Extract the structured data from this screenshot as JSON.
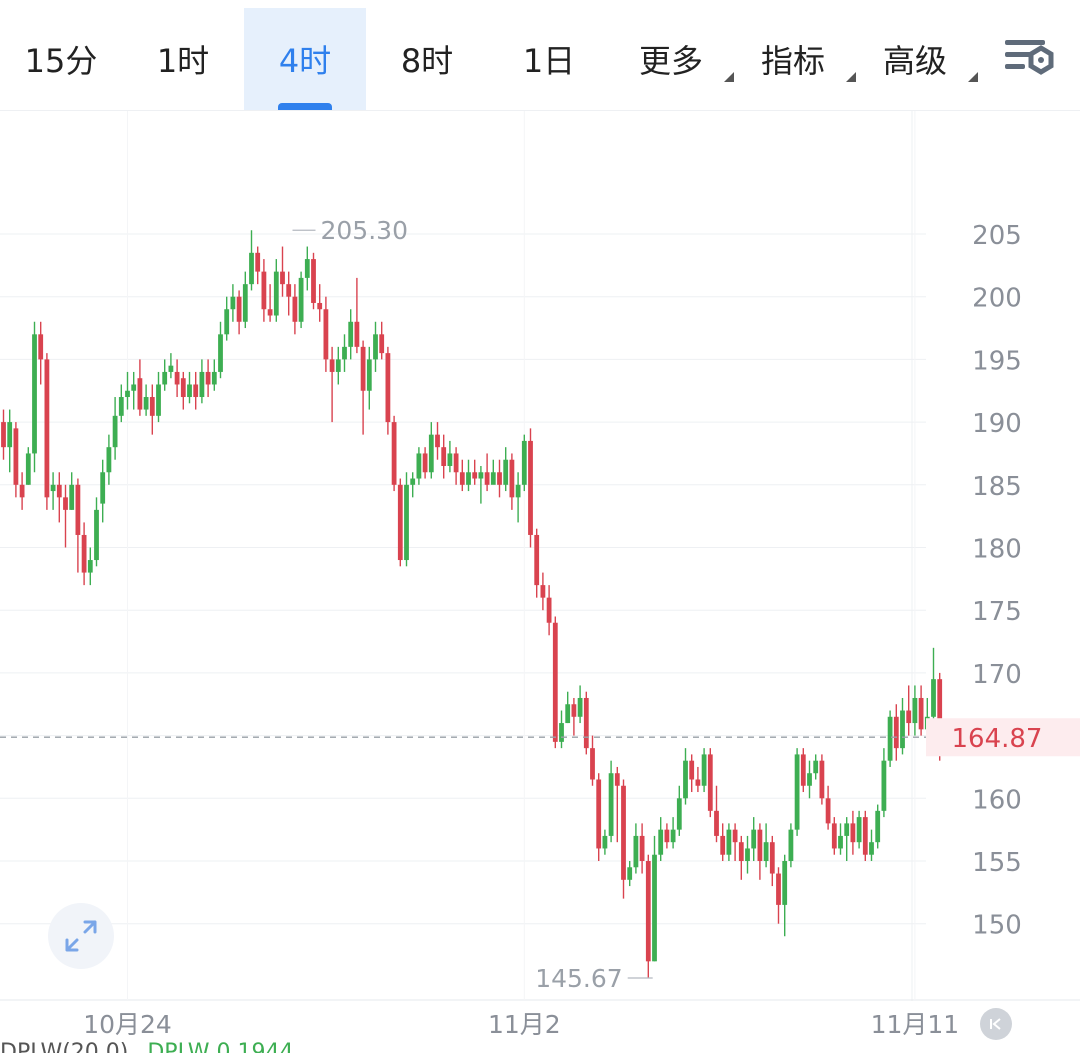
{
  "tabs": [
    {
      "label": "15分"
    },
    {
      "label": "1时"
    },
    {
      "label": "4时",
      "active": true
    },
    {
      "label": "8时"
    },
    {
      "label": "1日"
    },
    {
      "label": "更多",
      "dropdown": true
    },
    {
      "label": "指标",
      "dropdown": true
    },
    {
      "label": "高级",
      "dropdown": true
    }
  ],
  "icons": {
    "settings": "chart-settings-icon",
    "expand": "expand-arrows-icon",
    "rewind": "jump-to-start-icon"
  },
  "colors": {
    "up": "#3dae52",
    "down": "#d9434f",
    "active_tab": "#2f80ed",
    "price_tag": "#d9434f"
  },
  "indicator_strip": {
    "name": "DPLW(20,0)",
    "value": "DPLW 0.1944"
  },
  "chart_data": {
    "type": "candlestick",
    "interval": "4时",
    "y_ticks": [
      150,
      155,
      160,
      165,
      170,
      175,
      180,
      185,
      190,
      195,
      200,
      205
    ],
    "y_tick_labels": [
      "150",
      "155",
      "160",
      "",
      "170",
      "175",
      "180",
      "185",
      "190",
      "195",
      "200",
      "205"
    ],
    "ylim": [
      143.9,
      214.1
    ],
    "x_tick_labels": [
      {
        "label": "10月24",
        "bar": 20
      },
      {
        "label": "11月2",
        "bar": 84
      },
      {
        "label": "11月11",
        "bar": 147
      }
    ],
    "grid": true,
    "last_price": 164.87,
    "last_price_label": "164.87",
    "high_annotation": {
      "value": 205.3,
      "label": "205.30",
      "bar": 45
    },
    "low_annotation": {
      "value": 145.67,
      "label": "145.67",
      "bar": 106
    },
    "candles": [
      [
        190.0,
        188.0,
        191.0,
        187.0
      ],
      [
        188.0,
        190.0,
        191.0,
        186.0
      ],
      [
        189.5,
        185.0,
        190.0,
        184.0
      ],
      [
        185.0,
        184.0,
        186.0,
        183.0
      ],
      [
        185.0,
        187.5,
        188.0,
        185.0
      ],
      [
        187.5,
        197.0,
        198.0,
        186.0
      ],
      [
        197.0,
        195.0,
        198.0,
        193.0
      ],
      [
        195.0,
        184.0,
        195.5,
        183.0
      ],
      [
        184.5,
        185.0,
        186.0,
        183.0
      ],
      [
        185.0,
        184.0,
        186.0,
        182.0
      ],
      [
        184.0,
        183.0,
        185.0,
        180.0
      ],
      [
        183.0,
        185.0,
        186.0,
        183.0
      ],
      [
        185.0,
        181.0,
        185.5,
        178.0
      ],
      [
        181.0,
        178.0,
        182.0,
        177.0
      ],
      [
        178.0,
        179.0,
        180.0,
        177.0
      ],
      [
        179.0,
        183.0,
        184.0,
        178.5
      ],
      [
        183.5,
        186.0,
        187.0,
        182.0
      ],
      [
        186.0,
        188.0,
        189.0,
        185.0
      ],
      [
        188.0,
        190.5,
        192.0,
        187.0
      ],
      [
        190.5,
        192.0,
        193.0,
        190.0
      ],
      [
        192.0,
        192.5,
        194.0,
        191.0
      ],
      [
        192.5,
        193.0,
        194.0,
        191.0
      ],
      [
        193.5,
        191.0,
        195.0,
        190.5
      ],
      [
        191.0,
        192.0,
        193.0,
        190.5
      ],
      [
        192.0,
        190.5,
        193.0,
        189.0
      ],
      [
        190.5,
        193.0,
        194.0,
        190.0
      ],
      [
        193.0,
        194.0,
        195.0,
        192.5
      ],
      [
        194.0,
        194.5,
        195.5,
        193.5
      ],
      [
        194.0,
        193.0,
        195.0,
        192.0
      ],
      [
        193.5,
        192.0,
        194.0,
        191.0
      ],
      [
        192.0,
        193.0,
        194.0,
        191.5
      ],
      [
        193.0,
        192.0,
        194.0,
        191.0
      ],
      [
        192.0,
        194.0,
        195.0,
        191.5
      ],
      [
        194.0,
        193.0,
        195.0,
        192.0
      ],
      [
        193.0,
        194.0,
        195.0,
        192.5
      ],
      [
        194.0,
        197.0,
        198.0,
        193.5
      ],
      [
        197.0,
        199.0,
        200.0,
        196.5
      ],
      [
        199.0,
        200.0,
        201.0,
        198.0
      ],
      [
        200.0,
        198.0,
        200.5,
        197.0
      ],
      [
        198.0,
        201.0,
        202.0,
        197.5
      ],
      [
        201.0,
        203.5,
        205.3,
        200.5
      ],
      [
        203.5,
        202.0,
        204.0,
        201.0
      ],
      [
        202.0,
        199.0,
        203.0,
        198.0
      ],
      [
        199.0,
        198.5,
        201.0,
        198.0
      ],
      [
        198.5,
        202.0,
        203.0,
        198.0
      ],
      [
        202.0,
        201.0,
        204.0,
        200.0
      ],
      [
        201.0,
        200.0,
        202.0,
        198.5
      ],
      [
        200.0,
        198.0,
        201.0,
        197.0
      ],
      [
        198.0,
        201.5,
        202.0,
        197.5
      ],
      [
        201.5,
        203.0,
        204.0,
        200.5
      ],
      [
        203.0,
        199.5,
        203.5,
        199.0
      ],
      [
        199.5,
        199.0,
        201.0,
        198.0
      ],
      [
        199.0,
        195.0,
        200.0,
        194.0
      ],
      [
        195.0,
        194.0,
        196.0,
        190.0
      ],
      [
        194.0,
        195.0,
        196.0,
        193.0
      ],
      [
        195.0,
        196.0,
        197.0,
        194.0
      ],
      [
        196.0,
        198.0,
        199.0,
        195.0
      ],
      [
        198.0,
        196.0,
        201.5,
        195.5
      ],
      [
        196.0,
        192.5,
        196.5,
        189.0
      ],
      [
        192.5,
        195.0,
        196.0,
        191.0
      ],
      [
        195.0,
        197.0,
        198.0,
        194.0
      ],
      [
        197.0,
        195.5,
        198.0,
        195.0
      ],
      [
        195.5,
        190.0,
        196.0,
        189.0
      ],
      [
        190.0,
        185.0,
        190.5,
        184.5
      ],
      [
        185.0,
        179.0,
        185.5,
        178.5
      ],
      [
        179.0,
        185.0,
        186.0,
        178.5
      ],
      [
        185.0,
        185.5,
        186.0,
        184.0
      ],
      [
        185.5,
        187.5,
        188.0,
        185.0
      ],
      [
        187.5,
        186.0,
        188.0,
        185.5
      ],
      [
        186.0,
        189.0,
        190.0,
        185.5
      ],
      [
        189.0,
        188.0,
        190.0,
        187.0
      ],
      [
        188.0,
        186.5,
        189.0,
        185.5
      ],
      [
        186.5,
        187.5,
        188.5,
        186.0
      ],
      [
        187.5,
        186.0,
        188.0,
        185.0
      ],
      [
        186.0,
        185.0,
        187.0,
        184.5
      ],
      [
        185.0,
        186.0,
        187.0,
        184.5
      ],
      [
        186.0,
        185.5,
        187.0,
        185.0
      ],
      [
        185.5,
        186.0,
        186.5,
        183.5
      ],
      [
        186.0,
        185.0,
        187.5,
        184.5
      ],
      [
        185.0,
        186.0,
        187.0,
        185.5
      ],
      [
        186.0,
        185.0,
        187.0,
        184.0
      ],
      [
        185.0,
        187.0,
        188.0,
        184.5
      ],
      [
        187.0,
        184.0,
        187.5,
        183.0
      ],
      [
        184.0,
        185.0,
        186.0,
        182.0
      ],
      [
        185.0,
        188.5,
        189.0,
        184.5
      ],
      [
        188.5,
        181.0,
        189.5,
        180.0
      ],
      [
        181.0,
        177.0,
        181.5,
        176.0
      ],
      [
        177.0,
        176.0,
        178.0,
        175.0
      ],
      [
        176.0,
        174.0,
        177.0,
        173.0
      ],
      [
        174.0,
        164.5,
        174.5,
        164.0
      ],
      [
        164.5,
        166.0,
        167.0,
        164.0
      ],
      [
        166.0,
        167.5,
        168.5,
        166.0
      ],
      [
        167.5,
        166.5,
        168.0,
        165.0
      ],
      [
        166.5,
        168.0,
        169.0,
        166.0
      ],
      [
        168.0,
        164.0,
        168.5,
        163.5
      ],
      [
        164.0,
        161.5,
        165.0,
        161.0
      ],
      [
        161.5,
        156.0,
        162.0,
        155.0
      ],
      [
        156.0,
        157.0,
        157.5,
        155.5
      ],
      [
        157.0,
        162.0,
        163.0,
        156.5
      ],
      [
        162.0,
        161.0,
        162.5,
        156.5
      ],
      [
        161.0,
        153.5,
        161.5,
        152.0
      ],
      [
        153.5,
        154.5,
        155.0,
        153.0
      ],
      [
        154.5,
        157.0,
        158.0,
        154.0
      ],
      [
        157.0,
        155.0,
        158.0,
        154.0
      ],
      [
        155.0,
        147.0,
        155.5,
        145.67
      ],
      [
        147.0,
        155.5,
        157.0,
        147.0
      ],
      [
        155.5,
        157.5,
        158.5,
        155.0
      ],
      [
        157.5,
        156.5,
        158.0,
        156.0
      ],
      [
        156.5,
        157.5,
        158.5,
        156.0
      ],
      [
        157.5,
        160.0,
        161.0,
        157.0
      ],
      [
        160.0,
        163.0,
        164.0,
        159.5
      ],
      [
        163.0,
        161.5,
        163.5,
        160.5
      ],
      [
        161.5,
        161.0,
        162.5,
        160.5
      ],
      [
        161.0,
        163.5,
        164.0,
        160.5
      ],
      [
        163.5,
        159.0,
        164.0,
        158.5
      ],
      [
        159.0,
        157.0,
        161.0,
        156.5
      ],
      [
        157.0,
        155.5,
        158.0,
        155.0
      ],
      [
        155.5,
        157.5,
        158.0,
        155.0
      ],
      [
        157.5,
        156.5,
        158.0,
        155.0
      ],
      [
        156.5,
        155.0,
        157.0,
        153.5
      ],
      [
        155.0,
        156.0,
        157.0,
        154.0
      ],
      [
        156.0,
        157.5,
        158.5,
        155.0
      ],
      [
        157.5,
        155.0,
        158.0,
        153.5
      ],
      [
        155.0,
        156.5,
        158.0,
        154.5
      ],
      [
        156.5,
        154.0,
        157.0,
        153.0
      ],
      [
        154.0,
        151.5,
        154.5,
        150.0
      ],
      [
        151.5,
        155.0,
        155.5,
        149.0
      ],
      [
        155.0,
        157.5,
        158.0,
        154.5
      ],
      [
        157.5,
        163.5,
        164.0,
        157.0
      ],
      [
        163.5,
        161.0,
        164.0,
        160.5
      ],
      [
        161.0,
        162.0,
        163.0,
        160.0
      ],
      [
        162.0,
        163.0,
        163.5,
        161.5
      ],
      [
        163.0,
        160.0,
        163.5,
        159.5
      ],
      [
        160.0,
        158.0,
        161.0,
        157.5
      ],
      [
        158.0,
        156.0,
        158.5,
        155.5
      ],
      [
        156.0,
        157.0,
        158.0,
        155.5
      ],
      [
        157.0,
        158.0,
        158.5,
        155.0
      ],
      [
        158.0,
        156.5,
        159.0,
        155.5
      ],
      [
        156.5,
        158.5,
        159.0,
        156.0
      ],
      [
        158.5,
        155.5,
        159.0,
        155.0
      ],
      [
        155.5,
        156.5,
        157.5,
        155.0
      ],
      [
        156.5,
        159.0,
        159.5,
        156.0
      ],
      [
        159.0,
        163.0,
        164.0,
        158.5
      ],
      [
        163.0,
        166.5,
        167.0,
        162.5
      ],
      [
        166.5,
        164.0,
        167.5,
        163.0
      ],
      [
        164.0,
        167.0,
        168.0,
        163.5
      ],
      [
        167.0,
        166.0,
        169.0,
        165.0
      ],
      [
        166.0,
        168.0,
        169.0,
        165.0
      ],
      [
        168.0,
        165.5,
        169.0,
        165.0
      ],
      [
        165.5,
        166.5,
        168.0,
        165.0
      ],
      [
        166.5,
        169.5,
        172.0,
        165.0
      ],
      [
        169.5,
        164.87,
        170.0,
        163.0
      ]
    ]
  }
}
